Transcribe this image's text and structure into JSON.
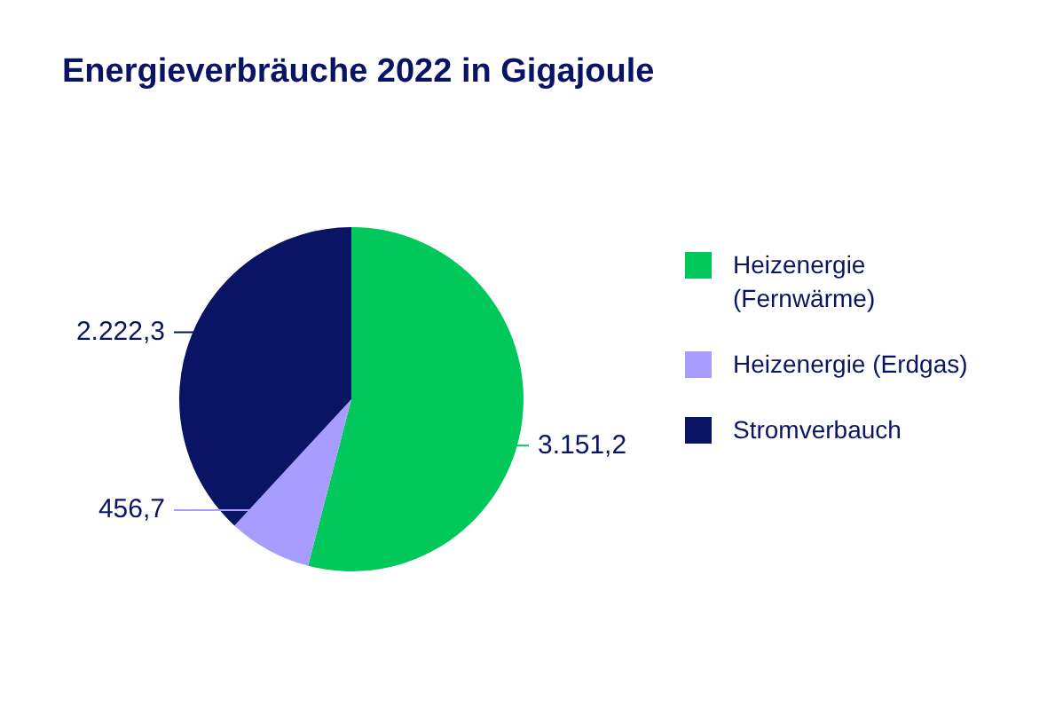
{
  "chart_data": {
    "type": "pie",
    "title": "Energieverbräuche 2022 in Gigajoule",
    "categories": [
      "Heizenergie (Fernwärme)",
      "Heizenergie (Erdgas)",
      "Stromverbauch"
    ],
    "values": [
      3151.2,
      456.7,
      2222.3
    ],
    "colors": [
      "#00c85a",
      "#a89cff",
      "#0a1464"
    ],
    "value_labels": [
      "3.151,2",
      "456,7",
      "2.222,3"
    ],
    "legend": "right"
  }
}
